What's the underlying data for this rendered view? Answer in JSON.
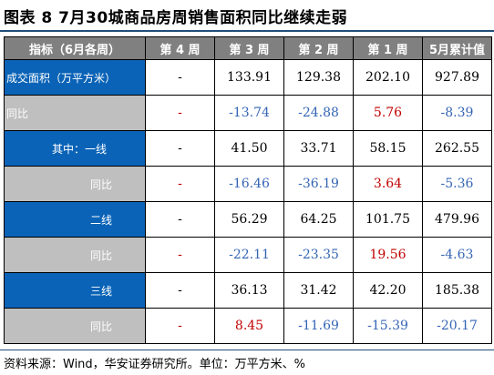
{
  "title": "图表 8 7月30城商品房周销售面积同比继续走弱",
  "headers": [
    "指标（6月各周）",
    "第 4 周",
    "第 3 周",
    "第 2 周",
    "第 1 周",
    "5月累计值"
  ],
  "rows": [
    {
      "label": "成交面积（万平方米）",
      "cells": [
        "-",
        "133.91",
        "129.38",
        "202.10",
        "927.89"
      ],
      "colors": [
        "",
        "",
        "",
        "",
        ""
      ]
    },
    {
      "label": "同比",
      "cells": [
        "-",
        "-13.74",
        "-24.88",
        "5.76",
        "-8.39"
      ],
      "colors": [
        "dash-red",
        "neg",
        "neg",
        "pos",
        "neg"
      ]
    },
    {
      "label": "其中：一线",
      "cells": [
        "-",
        "41.50",
        "33.71",
        "58.15",
        "262.55"
      ],
      "colors": [
        "",
        "",
        "",
        "",
        ""
      ]
    },
    {
      "label": "同比",
      "cells": [
        "-",
        "-16.46",
        "-36.19",
        "3.64",
        "-5.36"
      ],
      "colors": [
        "dash-red",
        "neg",
        "neg",
        "pos",
        "neg"
      ]
    },
    {
      "label": "二线",
      "cells": [
        "-",
        "56.29",
        "64.25",
        "101.75",
        "479.96"
      ],
      "colors": [
        "",
        "",
        "",
        "",
        ""
      ]
    },
    {
      "label": "同比",
      "cells": [
        "-",
        "-22.11",
        "-23.35",
        "19.56",
        "-4.63"
      ],
      "colors": [
        "dash-red",
        "neg",
        "neg",
        "pos",
        "neg"
      ]
    },
    {
      "label": "三线",
      "cells": [
        "-",
        "36.13",
        "31.42",
        "42.20",
        "185.38"
      ],
      "colors": [
        "",
        "",
        "",
        "",
        ""
      ]
    },
    {
      "label": "同比",
      "cells": [
        "-",
        "8.45",
        "-11.69",
        "-15.39",
        "-20.17"
      ],
      "colors": [
        "dash-red",
        "pos",
        "neg",
        "neg",
        "neg"
      ]
    }
  ],
  "colors": {
    "header_bg": "#808080",
    "label_blue": "#0a63b7",
    "label_gray": "#bfbfbf",
    "negative": "#3565b5",
    "positive": "#c00000"
  },
  "source": "资料来源：Wind，华安证券研究所。单位：万平方米、%"
}
